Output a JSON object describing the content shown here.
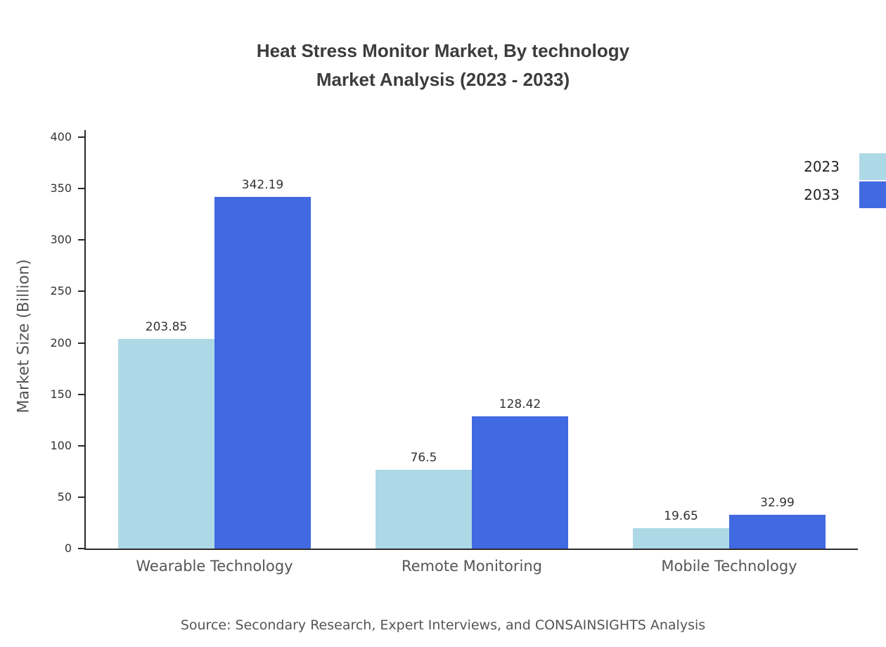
{
  "title": {
    "line1": "Heat Stress Monitor Market, By technology",
    "line2": "Market Analysis (2023 - 2033)"
  },
  "source": "Source: Secondary Research, Expert Interviews, and CONSAINSIGHTS Analysis",
  "chart_data": {
    "type": "bar",
    "title": "Heat Stress Monitor Market, By technology — Market Analysis (2023 - 2033)",
    "categories": [
      "Wearable Technology",
      "Remote Monitoring",
      "Mobile Technology"
    ],
    "series": [
      {
        "name": "2023",
        "color": "#ADD8E6",
        "values": [
          203.85,
          76.5,
          19.65
        ]
      },
      {
        "name": "2033",
        "color": "#4169E1",
        "values": [
          342.19,
          128.42,
          32.99
        ]
      }
    ],
    "xlabel": "",
    "ylabel": "Market Size (Billion)",
    "ylim": [
      0,
      400
    ],
    "yticks": [
      0,
      50,
      100,
      150,
      200,
      250,
      300,
      350,
      400
    ],
    "grid": false,
    "legend_position": "top-right"
  }
}
